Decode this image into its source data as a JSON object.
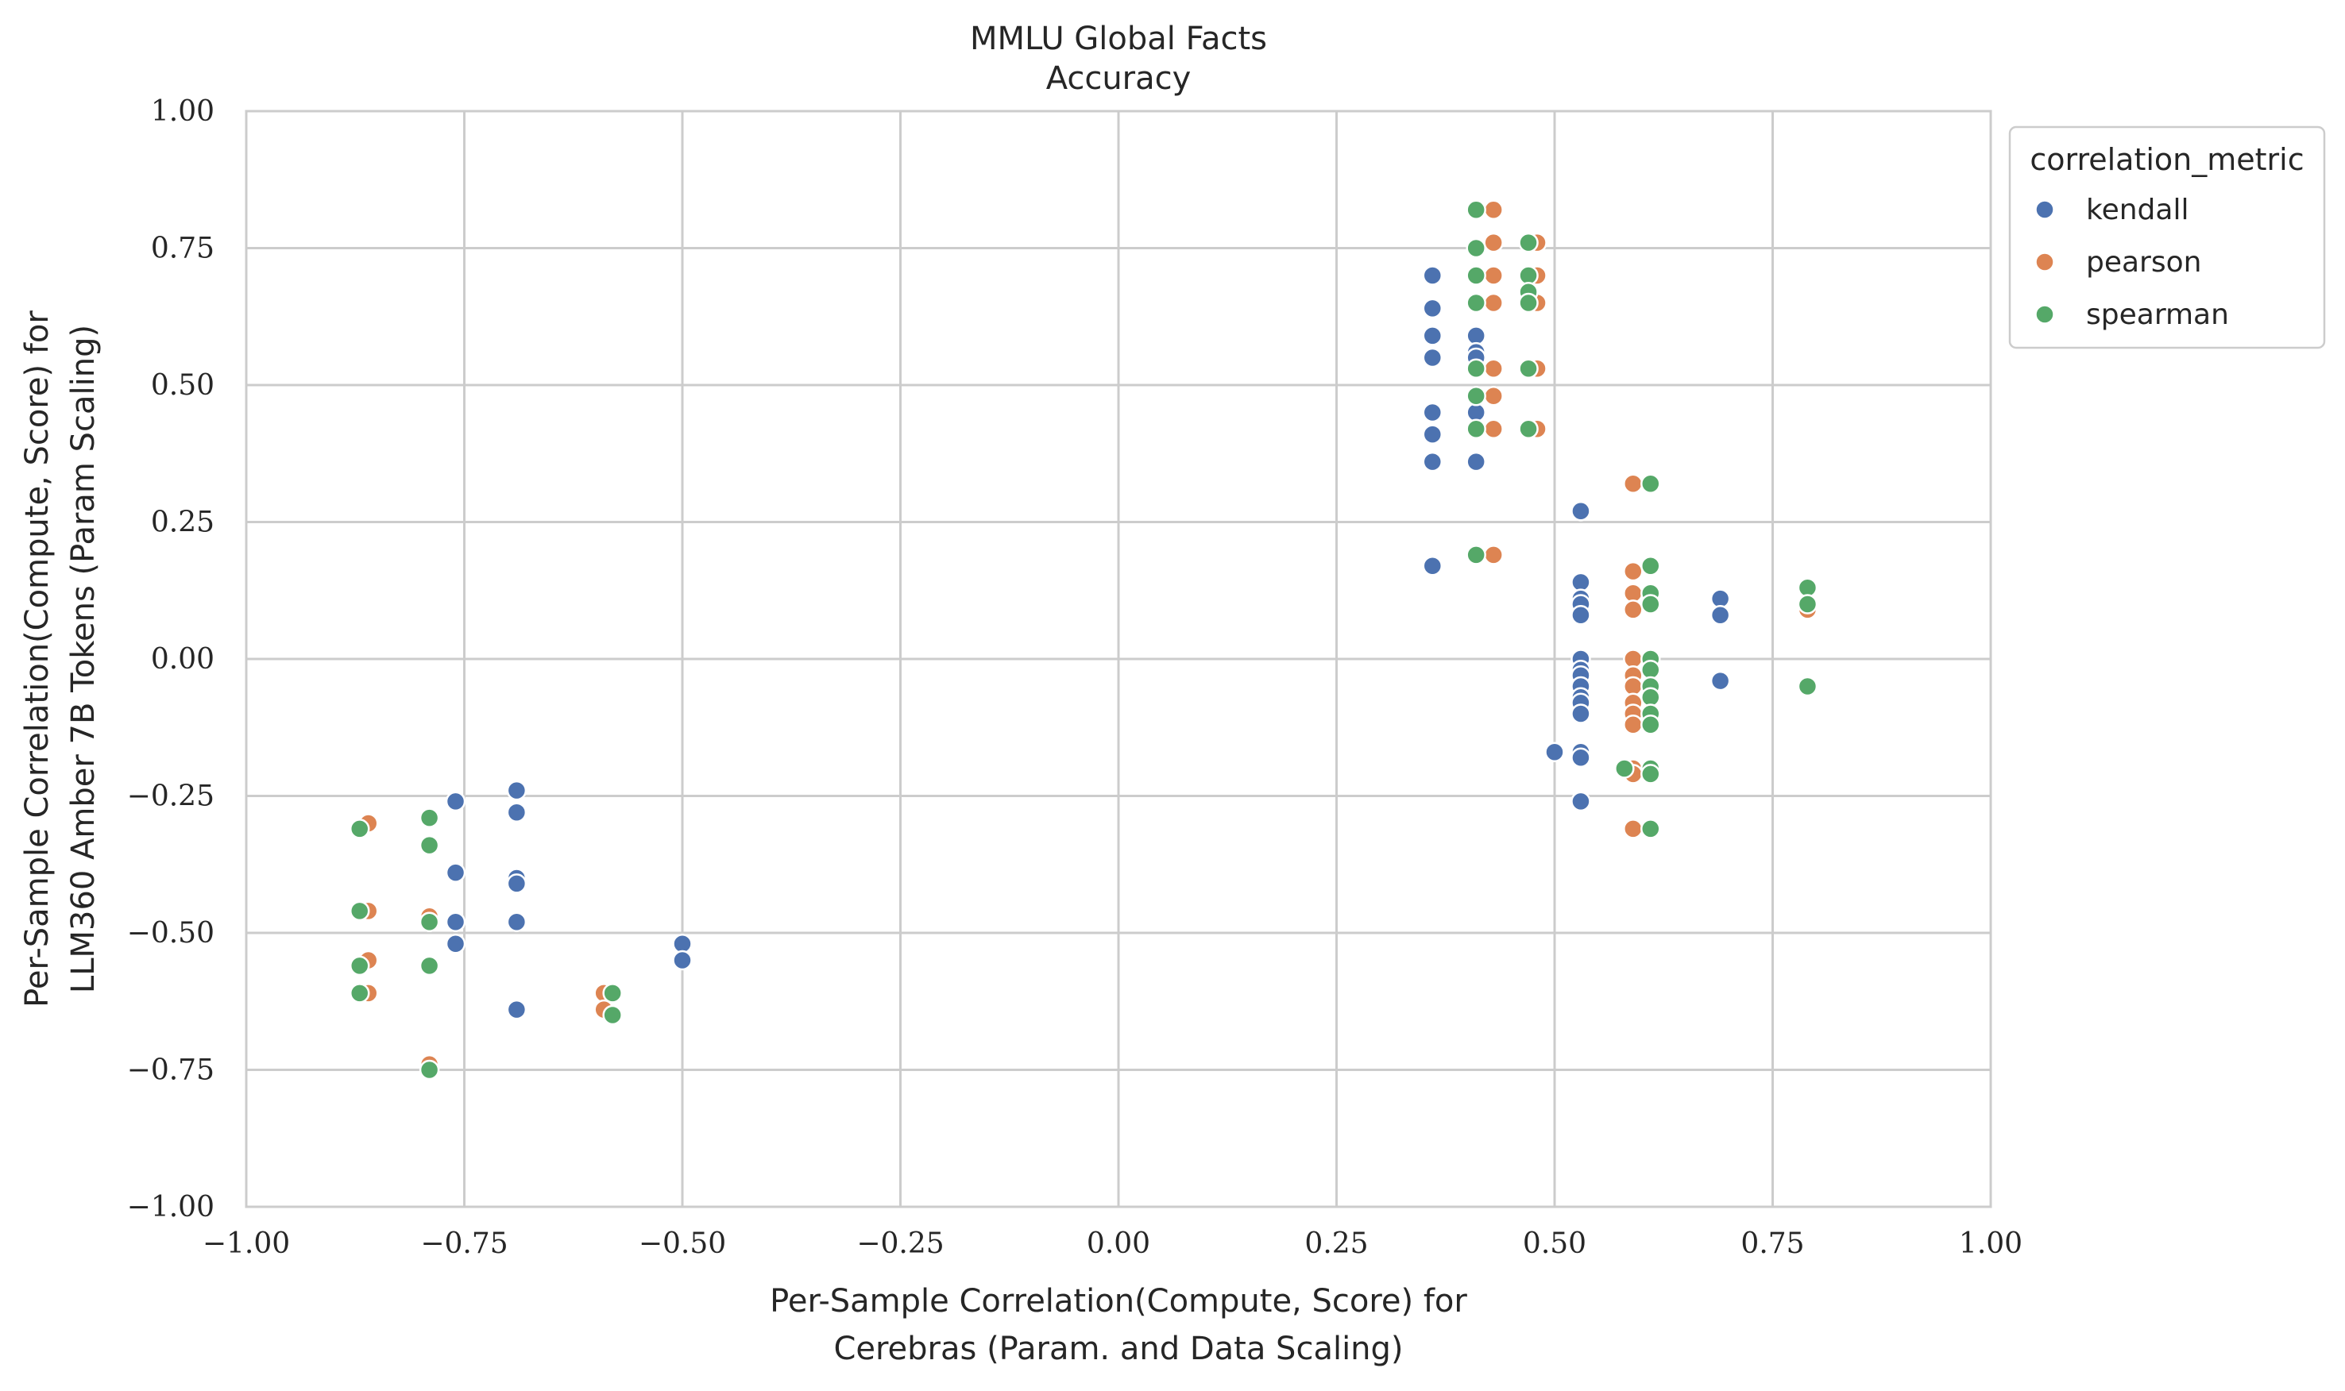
{
  "chart_data": {
    "type": "scatter",
    "title": "MMLU Global Facts",
    "subtitle": "Accuracy",
    "xlabel": [
      "Per-Sample Correlation(Compute, Score) for",
      "Cerebras (Param. and Data Scaling)"
    ],
    "ylabel": [
      "Per-Sample Correlation(Compute, Score) for",
      "LLM360 Amber 7B Tokens (Param Scaling)"
    ],
    "xlim": [
      -1.0,
      1.0
    ],
    "ylim": [
      -1.0,
      1.0
    ],
    "xticks": [
      -1.0,
      -0.75,
      -0.5,
      -0.25,
      0.0,
      0.25,
      0.5,
      0.75,
      1.0
    ],
    "yticks": [
      -1.0,
      -0.75,
      -0.5,
      -0.25,
      0.0,
      0.25,
      0.5,
      0.75,
      1.0
    ],
    "xtick_labels": [
      "−1.00",
      "−0.75",
      "−0.50",
      "−0.25",
      "0.00",
      "0.25",
      "0.50",
      "0.75",
      "1.00"
    ],
    "ytick_labels": [
      "−1.00",
      "−0.75",
      "−0.50",
      "−0.25",
      "0.00",
      "0.25",
      "0.50",
      "0.75",
      "1.00"
    ],
    "grid": true,
    "legend": {
      "title": "correlation_metric",
      "placement": "outside-right-top"
    },
    "series": [
      {
        "name": "kendall",
        "color": "#4c72b0",
        "points": [
          [
            -0.76,
            -0.26
          ],
          [
            -0.76,
            -0.39
          ],
          [
            -0.76,
            -0.48
          ],
          [
            -0.76,
            -0.52
          ],
          [
            -0.69,
            -0.24
          ],
          [
            -0.69,
            -0.28
          ],
          [
            -0.69,
            -0.4
          ],
          [
            -0.69,
            -0.41
          ],
          [
            -0.69,
            -0.48
          ],
          [
            -0.69,
            -0.64
          ],
          [
            -0.5,
            -0.52
          ],
          [
            -0.5,
            -0.55
          ],
          [
            0.36,
            0.7
          ],
          [
            0.36,
            0.64
          ],
          [
            0.36,
            0.59
          ],
          [
            0.36,
            0.55
          ],
          [
            0.36,
            0.45
          ],
          [
            0.36,
            0.41
          ],
          [
            0.36,
            0.36
          ],
          [
            0.36,
            0.17
          ],
          [
            0.41,
            0.59
          ],
          [
            0.41,
            0.56
          ],
          [
            0.41,
            0.55
          ],
          [
            0.41,
            0.45
          ],
          [
            0.41,
            0.36
          ],
          [
            0.5,
            -0.17
          ],
          [
            0.53,
            0.27
          ],
          [
            0.53,
            0.14
          ],
          [
            0.53,
            0.11
          ],
          [
            0.53,
            0.1
          ],
          [
            0.53,
            0.08
          ],
          [
            0.53,
            0.0
          ],
          [
            0.53,
            -0.02
          ],
          [
            0.53,
            -0.03
          ],
          [
            0.53,
            -0.05
          ],
          [
            0.53,
            -0.07
          ],
          [
            0.53,
            -0.08
          ],
          [
            0.53,
            -0.1
          ],
          [
            0.53,
            -0.17
          ],
          [
            0.53,
            -0.18
          ],
          [
            0.53,
            -0.26
          ],
          [
            0.69,
            0.11
          ],
          [
            0.69,
            0.08
          ],
          [
            0.69,
            -0.04
          ]
        ]
      },
      {
        "name": "pearson",
        "color": "#dd8452",
        "points": [
          [
            -0.86,
            -0.3
          ],
          [
            -0.86,
            -0.46
          ],
          [
            -0.86,
            -0.55
          ],
          [
            -0.86,
            -0.61
          ],
          [
            -0.79,
            -0.29
          ],
          [
            -0.79,
            -0.47
          ],
          [
            -0.79,
            -0.48
          ],
          [
            -0.79,
            -0.56
          ],
          [
            -0.79,
            -0.74
          ],
          [
            -0.59,
            -0.61
          ],
          [
            -0.59,
            -0.64
          ],
          [
            0.43,
            0.82
          ],
          [
            0.43,
            0.76
          ],
          [
            0.43,
            0.7
          ],
          [
            0.43,
            0.65
          ],
          [
            0.43,
            0.53
          ],
          [
            0.43,
            0.48
          ],
          [
            0.43,
            0.42
          ],
          [
            0.43,
            0.19
          ],
          [
            0.48,
            0.76
          ],
          [
            0.48,
            0.7
          ],
          [
            0.48,
            0.65
          ],
          [
            0.48,
            0.53
          ],
          [
            0.48,
            0.42
          ],
          [
            0.59,
            0.32
          ],
          [
            0.59,
            0.16
          ],
          [
            0.59,
            0.12
          ],
          [
            0.59,
            0.09
          ],
          [
            0.59,
            0.0
          ],
          [
            0.59,
            -0.03
          ],
          [
            0.59,
            -0.05
          ],
          [
            0.59,
            -0.08
          ],
          [
            0.59,
            -0.1
          ],
          [
            0.59,
            -0.12
          ],
          [
            0.59,
            -0.2
          ],
          [
            0.59,
            -0.21
          ],
          [
            0.59,
            -0.31
          ],
          [
            0.79,
            0.09
          ]
        ]
      },
      {
        "name": "spearman",
        "color": "#55a868",
        "points": [
          [
            -0.87,
            -0.31
          ],
          [
            -0.87,
            -0.46
          ],
          [
            -0.87,
            -0.56
          ],
          [
            -0.87,
            -0.61
          ],
          [
            -0.79,
            -0.29
          ],
          [
            -0.79,
            -0.34
          ],
          [
            -0.79,
            -0.48
          ],
          [
            -0.79,
            -0.56
          ],
          [
            -0.79,
            -0.75
          ],
          [
            -0.58,
            -0.61
          ],
          [
            -0.58,
            -0.65
          ],
          [
            0.41,
            0.82
          ],
          [
            0.41,
            0.75
          ],
          [
            0.41,
            0.7
          ],
          [
            0.41,
            0.65
          ],
          [
            0.41,
            0.53
          ],
          [
            0.41,
            0.48
          ],
          [
            0.41,
            0.42
          ],
          [
            0.41,
            0.19
          ],
          [
            0.47,
            0.76
          ],
          [
            0.47,
            0.7
          ],
          [
            0.47,
            0.67
          ],
          [
            0.47,
            0.65
          ],
          [
            0.47,
            0.53
          ],
          [
            0.47,
            0.42
          ],
          [
            0.58,
            -0.2
          ],
          [
            0.61,
            0.32
          ],
          [
            0.61,
            0.17
          ],
          [
            0.61,
            0.12
          ],
          [
            0.61,
            0.1
          ],
          [
            0.61,
            0.0
          ],
          [
            0.61,
            -0.02
          ],
          [
            0.61,
            -0.05
          ],
          [
            0.61,
            -0.07
          ],
          [
            0.61,
            -0.1
          ],
          [
            0.61,
            -0.12
          ],
          [
            0.61,
            -0.2
          ],
          [
            0.61,
            -0.21
          ],
          [
            0.61,
            -0.31
          ],
          [
            0.79,
            0.13
          ],
          [
            0.79,
            0.1
          ],
          [
            0.79,
            -0.05
          ]
        ]
      }
    ]
  }
}
